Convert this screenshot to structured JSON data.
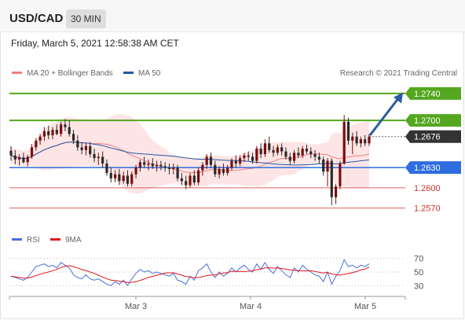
{
  "header": {
    "symbol": "USD/CAD",
    "timeframe": "30 MIN"
  },
  "datetime": "Friday, March 5, 2021 12:58:38 AM CET",
  "legend": {
    "ma20": "MA 20 + Bollinger Bands",
    "ma50": "MA 50",
    "credit": "Research © 2021 Trading Central"
  },
  "rsi_legend": {
    "rsi": "RSI",
    "ma9": "9MA"
  },
  "colors": {
    "up": "#7b0c0c",
    "down": "#2a2a2a",
    "band": "#fcdcdc",
    "ma20": "#f08080",
    "ma50": "#2456a4",
    "resistance": "#54a71f",
    "support": "#2e6ce0",
    "support2": "#e06060",
    "current": "#333333",
    "arrow": "#2a5c9e",
    "rsi": "#4a6fe0",
    "rsi_ma": "#e01818"
  },
  "chart_data": {
    "type": "candlestick",
    "y_range": [
      1.2545,
      1.2762
    ],
    "x_labels": [
      "Mar 3",
      "Mar 4",
      "Mar 5"
    ],
    "levels": [
      {
        "price": 1.274,
        "label": "1.2740",
        "kind": "resistance"
      },
      {
        "price": 1.27,
        "label": "1.2700",
        "kind": "resistance"
      },
      {
        "price": 1.2676,
        "label": "1.2676",
        "kind": "current"
      },
      {
        "price": 1.263,
        "label": "1.2630",
        "kind": "support"
      },
      {
        "price": 1.26,
        "label": "1.2600",
        "kind": "support2"
      },
      {
        "price": 1.257,
        "label": "1.2570",
        "kind": "support2"
      }
    ],
    "candles": [
      [
        1.2655,
        1.2662,
        1.264,
        1.2648
      ],
      [
        1.2648,
        1.2656,
        1.2635,
        1.2642
      ],
      [
        1.2642,
        1.265,
        1.2633,
        1.2645
      ],
      [
        1.2645,
        1.2652,
        1.2636,
        1.2638
      ],
      [
        1.2638,
        1.2649,
        1.2632,
        1.2646
      ],
      [
        1.2646,
        1.2665,
        1.2643,
        1.266
      ],
      [
        1.266,
        1.2674,
        1.2655,
        1.267
      ],
      [
        1.267,
        1.268,
        1.2664,
        1.2676
      ],
      [
        1.2676,
        1.269,
        1.267,
        1.2684
      ],
      [
        1.2684,
        1.2692,
        1.2672,
        1.2678
      ],
      [
        1.2678,
        1.269,
        1.2672,
        1.2686
      ],
      [
        1.2686,
        1.2694,
        1.2678,
        1.268
      ],
      [
        1.268,
        1.2698,
        1.2676,
        1.2694
      ],
      [
        1.2694,
        1.2702,
        1.2684,
        1.269
      ],
      [
        1.269,
        1.27,
        1.2676,
        1.268
      ],
      [
        1.268,
        1.2686,
        1.2665,
        1.267
      ],
      [
        1.267,
        1.2678,
        1.2655,
        1.266
      ],
      [
        1.266,
        1.2668,
        1.265,
        1.2656
      ],
      [
        1.2656,
        1.2666,
        1.2648,
        1.2662
      ],
      [
        1.2662,
        1.2668,
        1.2645,
        1.265
      ],
      [
        1.265,
        1.2658,
        1.2638,
        1.2644
      ],
      [
        1.2644,
        1.2652,
        1.2634,
        1.2646
      ],
      [
        1.2646,
        1.2654,
        1.263,
        1.2636
      ],
      [
        1.2636,
        1.2642,
        1.2618,
        1.2622
      ],
      [
        1.2622,
        1.263,
        1.2608,
        1.2614
      ],
      [
        1.2614,
        1.2626,
        1.2608,
        1.262
      ],
      [
        1.262,
        1.2628,
        1.2604,
        1.261
      ],
      [
        1.261,
        1.2624,
        1.2606,
        1.2618
      ],
      [
        1.2618,
        1.2626,
        1.2602,
        1.2606
      ],
      [
        1.2606,
        1.2624,
        1.2602,
        1.262
      ],
      [
        1.262,
        1.2634,
        1.2614,
        1.263
      ],
      [
        1.263,
        1.2642,
        1.2624,
        1.2638
      ],
      [
        1.2638,
        1.2646,
        1.263,
        1.2634
      ],
      [
        1.2634,
        1.2642,
        1.2626,
        1.2636
      ],
      [
        1.2636,
        1.2644,
        1.2628,
        1.2632
      ],
      [
        1.2632,
        1.264,
        1.2624,
        1.2634
      ],
      [
        1.2634,
        1.264,
        1.2626,
        1.2632
      ],
      [
        1.2632,
        1.2638,
        1.2624,
        1.263
      ],
      [
        1.263,
        1.2636,
        1.262,
        1.2628
      ],
      [
        1.2628,
        1.2636,
        1.262,
        1.263
      ],
      [
        1.263,
        1.2634,
        1.261,
        1.2614
      ],
      [
        1.2614,
        1.2622,
        1.2604,
        1.261
      ],
      [
        1.261,
        1.2618,
        1.2598,
        1.2604
      ],
      [
        1.2604,
        1.2622,
        1.26,
        1.2618
      ],
      [
        1.2618,
        1.2626,
        1.2604,
        1.2608
      ],
      [
        1.2608,
        1.263,
        1.2604,
        1.2626
      ],
      [
        1.2626,
        1.2638,
        1.2618,
        1.2634
      ],
      [
        1.2634,
        1.265,
        1.2628,
        1.2646
      ],
      [
        1.2646,
        1.2652,
        1.263,
        1.2634
      ],
      [
        1.2634,
        1.264,
        1.2616,
        1.262
      ],
      [
        1.262,
        1.2632,
        1.2614,
        1.2628
      ],
      [
        1.2628,
        1.2636,
        1.2618,
        1.2622
      ],
      [
        1.2622,
        1.2634,
        1.2618,
        1.263
      ],
      [
        1.263,
        1.2644,
        1.2626,
        1.264
      ],
      [
        1.264,
        1.2648,
        1.263,
        1.2636
      ],
      [
        1.2636,
        1.2648,
        1.2632,
        1.2644
      ],
      [
        1.2644,
        1.2652,
        1.2638,
        1.2648
      ],
      [
        1.2648,
        1.2654,
        1.264,
        1.2646
      ],
      [
        1.2646,
        1.2652,
        1.2636,
        1.264
      ],
      [
        1.264,
        1.2662,
        1.2636,
        1.2658
      ],
      [
        1.2658,
        1.2666,
        1.2644,
        1.265
      ],
      [
        1.265,
        1.2672,
        1.2646,
        1.2666
      ],
      [
        1.2666,
        1.2676,
        1.2652,
        1.2656
      ],
      [
        1.2656,
        1.2662,
        1.2646,
        1.2652
      ],
      [
        1.2652,
        1.2664,
        1.2648,
        1.266
      ],
      [
        1.266,
        1.2666,
        1.2648,
        1.2654
      ],
      [
        1.2654,
        1.266,
        1.2642,
        1.2646
      ],
      [
        1.2646,
        1.2652,
        1.2634,
        1.264
      ],
      [
        1.264,
        1.2656,
        1.2636,
        1.2652
      ],
      [
        1.2652,
        1.266,
        1.2644,
        1.2648
      ],
      [
        1.2648,
        1.2662,
        1.2644,
        1.2658
      ],
      [
        1.2658,
        1.2664,
        1.265,
        1.2654
      ],
      [
        1.2654,
        1.266,
        1.2644,
        1.265
      ],
      [
        1.265,
        1.2656,
        1.264,
        1.2646
      ],
      [
        1.2646,
        1.2652,
        1.2636,
        1.2642
      ],
      [
        1.2642,
        1.2646,
        1.2618,
        1.2624
      ],
      [
        1.2624,
        1.2644,
        1.2602,
        1.264
      ],
      [
        1.264,
        1.2644,
        1.2574,
        1.2586
      ],
      [
        1.2586,
        1.2606,
        1.2576,
        1.2602
      ],
      [
        1.2602,
        1.264,
        1.2598,
        1.2636
      ],
      [
        1.2636,
        1.2708,
        1.2634,
        1.2698
      ],
      [
        1.2698,
        1.2704,
        1.2664,
        1.267
      ],
      [
        1.267,
        1.2682,
        1.265,
        1.2676
      ],
      [
        1.2676,
        1.2684,
        1.2662,
        1.2666
      ],
      [
        1.2666,
        1.2676,
        1.266,
        1.2672
      ],
      [
        1.2672,
        1.2678,
        1.2662,
        1.2666
      ],
      [
        1.2666,
        1.268,
        1.2662,
        1.2676
      ]
    ],
    "rsi": {
      "levels": [
        70,
        50,
        30
      ],
      "values": [
        44,
        42,
        40,
        38,
        42,
        50,
        58,
        60,
        62,
        58,
        60,
        56,
        64,
        60,
        56,
        46,
        42,
        40,
        46,
        40,
        38,
        40,
        36,
        32,
        30,
        36,
        32,
        38,
        30,
        40,
        48,
        54,
        50,
        52,
        48,
        50,
        48,
        46,
        44,
        48,
        38,
        36,
        32,
        44,
        38,
        52,
        56,
        62,
        50,
        42,
        50,
        44,
        48,
        56,
        50,
        56,
        60,
        54,
        50,
        62,
        54,
        64,
        54,
        48,
        58,
        52,
        46,
        42,
        56,
        50,
        60,
        54,
        50,
        46,
        44,
        36,
        50,
        32,
        44,
        52,
        68,
        58,
        60,
        56,
        60,
        58,
        62
      ]
    }
  }
}
